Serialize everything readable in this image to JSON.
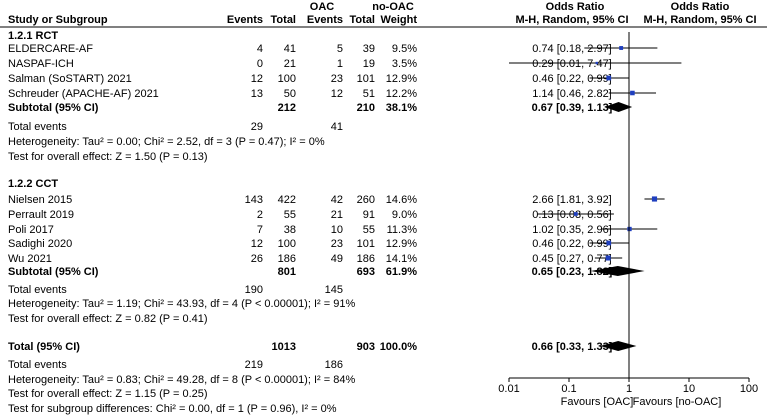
{
  "header": {
    "study": "Study or Subgroup",
    "group1": "OAC",
    "group2": "no-OAC",
    "events": "Events",
    "total": "Total",
    "weight": "Weight",
    "or_title": "Odds Ratio",
    "or_method": "M-H, Random, 95% CI"
  },
  "chart_data": {
    "type": "forest",
    "measure": "Odds Ratio (M-H, Random, 95% CI)",
    "x_scale": "log",
    "xlim": [
      0.01,
      100
    ],
    "x_ticks": [
      "0.01",
      "0.1",
      "1",
      "10",
      "100"
    ],
    "x_tick_values": [
      0.01,
      0.1,
      1,
      10,
      100
    ],
    "favours_left": "Favours [OAC]",
    "favours_right": "Favours [no-OAC]",
    "subgroups": [
      {
        "name": "1.2.1 RCT",
        "studies": [
          {
            "name": "ELDERCARE-AF",
            "oac_events": "4",
            "oac_total": "41",
            "no_events": "5",
            "no_total": "39",
            "weight": "9.5%",
            "or_text": "0.74 [0.18, 2.97]",
            "or": 0.74,
            "lo": 0.18,
            "hi": 2.97
          },
          {
            "name": "NASPAF-ICH",
            "oac_events": "0",
            "oac_total": "21",
            "no_events": "1",
            "no_total": "19",
            "weight": "3.5%",
            "or_text": "0.29 [0.01, 7.47]",
            "or": 0.29,
            "lo": 0.01,
            "hi": 7.47
          },
          {
            "name": "Salman (SoSTART) 2021",
            "oac_events": "12",
            "oac_total": "100",
            "no_events": "23",
            "no_total": "101",
            "weight": "12.9%",
            "or_text": "0.46 [0.22, 0.99]",
            "or": 0.46,
            "lo": 0.22,
            "hi": 0.99
          },
          {
            "name": "Schreuder (APACHE-AF) 2021",
            "oac_events": "13",
            "oac_total": "50",
            "no_events": "12",
            "no_total": "51",
            "weight": "12.2%",
            "or_text": "1.14 [0.46, 2.82]",
            "or": 1.14,
            "lo": 0.46,
            "hi": 2.82
          }
        ],
        "subtotal": {
          "label": "Subtotal (95% CI)",
          "oac_total": "212",
          "no_total": "210",
          "weight": "38.1%",
          "or_text": "0.67 [0.39, 1.13]",
          "or": 0.67,
          "lo": 0.39,
          "hi": 1.13
        },
        "total_events": {
          "label": "Total events",
          "oac": "29",
          "no": "41"
        },
        "heterogeneity": "Heterogeneity: Tau² = 0.00; Chi² = 2.52, df = 3 (P = 0.47); I² = 0%",
        "overall_effect": "Test for overall effect: Z = 1.50 (P = 0.13)"
      },
      {
        "name": "1.2.2 CCT",
        "studies": [
          {
            "name": "Nielsen 2015",
            "oac_events": "143",
            "oac_total": "422",
            "no_events": "42",
            "no_total": "260",
            "weight": "14.6%",
            "or_text": "2.66 [1.81, 3.92]",
            "or": 2.66,
            "lo": 1.81,
            "hi": 3.92
          },
          {
            "name": "Perrault 2019",
            "oac_events": "2",
            "oac_total": "55",
            "no_events": "21",
            "no_total": "91",
            "weight": "9.0%",
            "or_text": "0.13 [0.03, 0.56]",
            "or": 0.13,
            "lo": 0.03,
            "hi": 0.56
          },
          {
            "name": "Poli 2017",
            "oac_events": "7",
            "oac_total": "38",
            "no_events": "10",
            "no_total": "55",
            "weight": "11.3%",
            "or_text": "1.02 [0.35, 2.96]",
            "or": 1.02,
            "lo": 0.35,
            "hi": 2.96
          },
          {
            "name": "Sadighi 2020",
            "oac_events": "12",
            "oac_total": "100",
            "no_events": "23",
            "no_total": "101",
            "weight": "12.9%",
            "or_text": "0.46 [0.22, 0.99]",
            "or": 0.46,
            "lo": 0.22,
            "hi": 0.99
          },
          {
            "name": "Wu 2021",
            "oac_events": "26",
            "oac_total": "186",
            "no_events": "49",
            "no_total": "186",
            "weight": "14.1%",
            "or_text": "0.45 [0.27, 0.77]",
            "or": 0.45,
            "lo": 0.27,
            "hi": 0.77
          }
        ],
        "subtotal": {
          "label": "Subtotal (95% CI)",
          "oac_total": "801",
          "no_total": "693",
          "weight": "61.9%",
          "or_text": "0.65 [0.23, 1.82]",
          "or": 0.65,
          "lo": 0.23,
          "hi": 1.82
        },
        "total_events": {
          "label": "Total events",
          "oac": "190",
          "no": "145"
        },
        "heterogeneity": "Heterogeneity: Tau² = 1.19; Chi² = 43.93, df = 4 (P < 0.00001); I² = 91%",
        "overall_effect": "Test for overall effect: Z = 0.82 (P = 0.41)"
      }
    ],
    "overall": {
      "label": "Total (95% CI)",
      "oac_total": "1013",
      "no_total": "903",
      "weight": "100.0%",
      "or_text": "0.66 [0.33, 1.33]",
      "or": 0.66,
      "lo": 0.33,
      "hi": 1.33,
      "total_events": {
        "label": "Total events",
        "oac": "219",
        "no": "186"
      },
      "heterogeneity": "Heterogeneity: Tau² = 0.83; Chi² = 49.28, df = 8 (P < 0.00001); I² = 84%",
      "overall_effect": "Test for overall effect: Z = 1.15 (P = 0.25)",
      "subgroup_diff": "Test for subgroup differences: Chi² = 0.00, df = 1 (P = 0.96), I² = 0%"
    }
  }
}
